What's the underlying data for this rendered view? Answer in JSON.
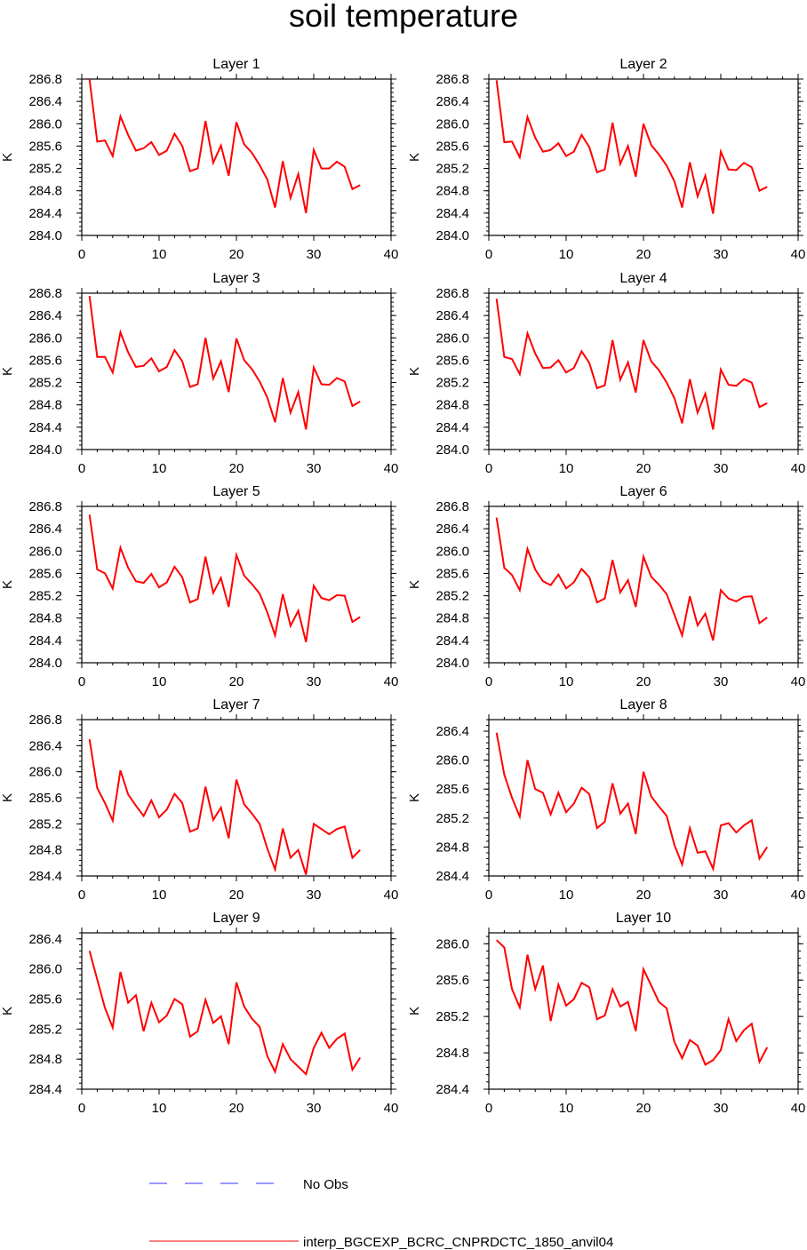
{
  "figure": {
    "title": "soil temperature",
    "legend": [
      {
        "label": "No Obs",
        "color": "#3333ff",
        "style": "dashed"
      },
      {
        "label": "interp_BGCEXP_BCRC_CNPRDCTC_1850_anvil04",
        "color": "#ff0000",
        "style": "solid"
      }
    ]
  },
  "chart_data": [
    {
      "type": "line",
      "title": "Layer 1",
      "ylabel": "K",
      "xlim": [
        0,
        40
      ],
      "xticks": [
        0,
        10,
        20,
        30,
        40
      ],
      "ylim": [
        284.0,
        286.8
      ],
      "yticks": [
        "284.0",
        "284.4",
        "284.8",
        "285.2",
        "285.6",
        "286.0",
        "286.4",
        "286.8"
      ],
      "series": [
        {
          "name": "interp_BGCEXP_BCRC_CNPRDCTC_1850_anvil04",
          "color": "#ff0000",
          "x": [
            1,
            2,
            3,
            4,
            5,
            6,
            7,
            8,
            9,
            10,
            11,
            12,
            13,
            14,
            15,
            16,
            17,
            18,
            19,
            20,
            21,
            22,
            23,
            24,
            25,
            26,
            27,
            28,
            29,
            30,
            31,
            32,
            33,
            34,
            35,
            36
          ],
          "y": [
            286.8,
            285.68,
            285.7,
            285.42,
            286.13,
            285.8,
            285.52,
            285.56,
            285.67,
            285.44,
            285.52,
            285.82,
            285.6,
            285.15,
            285.2,
            286.05,
            285.3,
            285.61,
            285.07,
            286.03,
            285.63,
            285.48,
            285.26,
            285.0,
            284.5,
            285.33,
            284.67,
            285.1,
            284.4,
            285.53,
            285.2,
            285.2,
            285.32,
            285.23,
            284.83,
            284.9
          ]
        }
      ]
    },
    {
      "type": "line",
      "title": "Layer 2",
      "ylabel": "K",
      "xlim": [
        0,
        40
      ],
      "xticks": [
        0,
        10,
        20,
        30,
        40
      ],
      "ylim": [
        284.0,
        286.8
      ],
      "yticks": [
        "284.0",
        "284.4",
        "284.8",
        "285.2",
        "285.6",
        "286.0",
        "286.4",
        "286.8"
      ],
      "series": [
        {
          "name": "interp_BGCEXP_BCRC_CNPRDCTC_1850_anvil04",
          "color": "#ff0000",
          "x": [
            1,
            2,
            3,
            4,
            5,
            6,
            7,
            8,
            9,
            10,
            11,
            12,
            13,
            14,
            15,
            16,
            17,
            18,
            19,
            20,
            21,
            22,
            23,
            24,
            25,
            26,
            27,
            28,
            29,
            30,
            31,
            32,
            33,
            34,
            35,
            36
          ],
          "y": [
            286.78,
            285.67,
            285.68,
            285.4,
            286.12,
            285.75,
            285.5,
            285.53,
            285.65,
            285.42,
            285.5,
            285.8,
            285.58,
            285.13,
            285.18,
            286.02,
            285.28,
            285.6,
            285.05,
            286.0,
            285.62,
            285.45,
            285.25,
            284.97,
            284.5,
            285.31,
            284.7,
            285.07,
            284.39,
            285.5,
            285.18,
            285.17,
            285.3,
            285.22,
            284.8,
            284.87
          ]
        }
      ]
    },
    {
      "type": "line",
      "title": "Layer 3",
      "ylabel": "K",
      "xlim": [
        0,
        40
      ],
      "xticks": [
        0,
        10,
        20,
        30,
        40
      ],
      "ylim": [
        284.0,
        286.8
      ],
      "yticks": [
        "284.0",
        "284.4",
        "284.8",
        "285.2",
        "285.6",
        "286.0",
        "286.4",
        "286.8"
      ],
      "series": [
        {
          "name": "interp_BGCEXP_BCRC_CNPRDCTC_1850_anvil04",
          "color": "#ff0000",
          "x": [
            1,
            2,
            3,
            4,
            5,
            6,
            7,
            8,
            9,
            10,
            11,
            12,
            13,
            14,
            15,
            16,
            17,
            18,
            19,
            20,
            21,
            22,
            23,
            24,
            25,
            26,
            27,
            28,
            29,
            30,
            31,
            32,
            33,
            34,
            35,
            36
          ],
          "y": [
            286.75,
            285.66,
            285.66,
            285.38,
            286.1,
            285.74,
            285.48,
            285.5,
            285.63,
            285.4,
            285.48,
            285.78,
            285.58,
            285.12,
            285.17,
            286.0,
            285.27,
            285.58,
            285.03,
            285.99,
            285.6,
            285.44,
            285.22,
            284.93,
            284.49,
            285.28,
            284.66,
            285.03,
            284.36,
            285.47,
            285.17,
            285.16,
            285.28,
            285.22,
            284.78,
            284.86
          ]
        }
      ]
    },
    {
      "type": "line",
      "title": "Layer 4",
      "ylabel": "K",
      "xlim": [
        0,
        40
      ],
      "xticks": [
        0,
        10,
        20,
        30,
        40
      ],
      "ylim": [
        284.0,
        286.8
      ],
      "yticks": [
        "284.0",
        "284.4",
        "284.8",
        "285.2",
        "285.6",
        "286.0",
        "286.4",
        "286.8"
      ],
      "series": [
        {
          "name": "interp_BGCEXP_BCRC_CNPRDCTC_1850_anvil04",
          "color": "#ff0000",
          "x": [
            1,
            2,
            3,
            4,
            5,
            6,
            7,
            8,
            9,
            10,
            11,
            12,
            13,
            14,
            15,
            16,
            17,
            18,
            19,
            20,
            21,
            22,
            23,
            24,
            25,
            26,
            27,
            28,
            29,
            30,
            31,
            32,
            33,
            34,
            35,
            36
          ],
          "y": [
            286.7,
            285.66,
            285.62,
            285.35,
            286.08,
            285.72,
            285.46,
            285.47,
            285.6,
            285.38,
            285.46,
            285.76,
            285.55,
            285.1,
            285.15,
            285.96,
            285.25,
            285.56,
            285.02,
            285.96,
            285.58,
            285.42,
            285.2,
            284.92,
            284.47,
            285.26,
            284.66,
            285.0,
            284.36,
            285.43,
            285.16,
            285.14,
            285.26,
            285.2,
            284.76,
            284.83
          ]
        }
      ]
    },
    {
      "type": "line",
      "title": "Layer 5",
      "ylabel": "K",
      "xlim": [
        0,
        40
      ],
      "xticks": [
        0,
        10,
        20,
        30,
        40
      ],
      "ylim": [
        284.0,
        286.8
      ],
      "yticks": [
        "284.0",
        "284.4",
        "284.8",
        "285.2",
        "285.6",
        "286.0",
        "286.4",
        "286.8"
      ],
      "series": [
        {
          "name": "interp_BGCEXP_BCRC_CNPRDCTC_1850_anvil04",
          "color": "#ff0000",
          "x": [
            1,
            2,
            3,
            4,
            5,
            6,
            7,
            8,
            9,
            10,
            11,
            12,
            13,
            14,
            15,
            16,
            17,
            18,
            19,
            20,
            21,
            22,
            23,
            24,
            25,
            26,
            27,
            28,
            29,
            30,
            31,
            32,
            33,
            34,
            35,
            36
          ],
          "y": [
            286.65,
            285.67,
            285.6,
            285.33,
            286.06,
            285.7,
            285.46,
            285.43,
            285.59,
            285.35,
            285.44,
            285.72,
            285.53,
            285.08,
            285.14,
            285.9,
            285.25,
            285.52,
            285.0,
            285.93,
            285.56,
            285.41,
            285.24,
            284.9,
            284.49,
            285.23,
            284.66,
            284.93,
            284.37,
            285.38,
            285.16,
            285.12,
            285.21,
            285.2,
            284.73,
            284.82
          ]
        }
      ]
    },
    {
      "type": "line",
      "title": "Layer 6",
      "ylabel": "K",
      "xlim": [
        0,
        40
      ],
      "xticks": [
        0,
        10,
        20,
        30,
        40
      ],
      "ylim": [
        284.0,
        286.8
      ],
      "yticks": [
        "284.0",
        "284.4",
        "284.8",
        "285.2",
        "285.6",
        "286.0",
        "286.4",
        "286.8"
      ],
      "series": [
        {
          "name": "interp_BGCEXP_BCRC_CNPRDCTC_1850_anvil04",
          "color": "#ff0000",
          "x": [
            1,
            2,
            3,
            4,
            5,
            6,
            7,
            8,
            9,
            10,
            11,
            12,
            13,
            14,
            15,
            16,
            17,
            18,
            19,
            20,
            21,
            22,
            23,
            24,
            25,
            26,
            27,
            28,
            29,
            30,
            31,
            32,
            33,
            34,
            35,
            36
          ],
          "y": [
            286.6,
            285.7,
            285.57,
            285.3,
            286.04,
            285.67,
            285.46,
            285.39,
            285.58,
            285.33,
            285.44,
            285.68,
            285.53,
            285.08,
            285.15,
            285.84,
            285.26,
            285.48,
            285.0,
            285.9,
            285.54,
            285.4,
            285.23,
            284.86,
            284.49,
            285.19,
            284.67,
            284.88,
            284.4,
            285.3,
            285.15,
            285.1,
            285.18,
            285.19,
            284.71,
            284.81
          ]
        }
      ]
    },
    {
      "type": "line",
      "title": "Layer 7",
      "ylabel": "K",
      "xlim": [
        0,
        40
      ],
      "xticks": [
        0,
        10,
        20,
        30,
        40
      ],
      "ylim": [
        284.4,
        286.8
      ],
      "yticks": [
        "284.4",
        "284.8",
        "285.2",
        "285.6",
        "286.0",
        "286.4",
        "286.8"
      ],
      "series": [
        {
          "name": "interp_BGCEXP_BCRC_CNPRDCTC_1850_anvil04",
          "color": "#ff0000",
          "x": [
            1,
            2,
            3,
            4,
            5,
            6,
            7,
            8,
            9,
            10,
            11,
            12,
            13,
            14,
            15,
            16,
            17,
            18,
            19,
            20,
            21,
            22,
            23,
            24,
            25,
            26,
            27,
            28,
            29,
            30,
            31,
            32,
            33,
            34,
            35,
            36
          ],
          "y": [
            286.5,
            285.75,
            285.52,
            285.25,
            286.02,
            285.65,
            285.48,
            285.32,
            285.56,
            285.3,
            285.42,
            285.66,
            285.52,
            285.08,
            285.13,
            285.77,
            285.26,
            285.45,
            284.98,
            285.88,
            285.5,
            285.36,
            285.2,
            284.82,
            284.5,
            285.13,
            284.68,
            284.8,
            284.42,
            285.2,
            285.12,
            285.04,
            285.12,
            285.16,
            284.68,
            284.8
          ]
        }
      ]
    },
    {
      "type": "line",
      "title": "Layer 8",
      "ylabel": "K",
      "xlim": [
        0,
        40
      ],
      "xticks": [
        0,
        10,
        20,
        30,
        40
      ],
      "ylim": [
        284.4,
        286.56
      ],
      "yticks": [
        "284.4",
        "284.8",
        "285.2",
        "285.6",
        "286.0",
        "286.4"
      ],
      "series": [
        {
          "name": "interp_BGCEXP_BCRC_CNPRDCTC_1850_anvil04",
          "color": "#ff0000",
          "x": [
            1,
            2,
            3,
            4,
            5,
            6,
            7,
            8,
            9,
            10,
            11,
            12,
            13,
            14,
            15,
            16,
            17,
            18,
            19,
            20,
            21,
            22,
            23,
            24,
            25,
            26,
            27,
            28,
            29,
            30,
            31,
            32,
            33,
            34,
            35,
            36
          ],
          "y": [
            286.38,
            285.8,
            285.48,
            285.22,
            286.0,
            285.6,
            285.55,
            285.25,
            285.55,
            285.28,
            285.4,
            285.62,
            285.53,
            285.06,
            285.15,
            285.68,
            285.26,
            285.4,
            284.98,
            285.84,
            285.5,
            285.36,
            285.23,
            284.83,
            284.56,
            285.06,
            284.72,
            284.74,
            284.5,
            285.1,
            285.13,
            285.0,
            285.1,
            285.17,
            284.64,
            284.8
          ]
        }
      ]
    },
    {
      "type": "line",
      "title": "Layer 9",
      "ylabel": "K",
      "xlim": [
        0,
        40
      ],
      "xticks": [
        0,
        10,
        20,
        30,
        40
      ],
      "ylim": [
        284.4,
        286.48
      ],
      "yticks": [
        "284.4",
        "284.8",
        "285.2",
        "285.6",
        "286.0",
        "286.4"
      ],
      "series": [
        {
          "name": "interp_BGCEXP_BCRC_CNPRDCTC_1850_anvil04",
          "color": "#ff0000",
          "x": [
            1,
            2,
            3,
            4,
            5,
            6,
            7,
            8,
            9,
            10,
            11,
            12,
            13,
            14,
            15,
            16,
            17,
            18,
            19,
            20,
            21,
            22,
            23,
            24,
            25,
            26,
            27,
            28,
            29,
            30,
            31,
            32,
            33,
            34,
            35,
            36
          ],
          "y": [
            286.24,
            285.86,
            285.48,
            285.22,
            285.96,
            285.55,
            285.65,
            285.17,
            285.55,
            285.29,
            285.38,
            285.6,
            285.53,
            285.1,
            285.17,
            285.59,
            285.28,
            285.37,
            285.0,
            285.82,
            285.5,
            285.34,
            285.23,
            284.84,
            284.63,
            285.0,
            284.8,
            284.7,
            284.6,
            284.95,
            285.15,
            284.95,
            285.07,
            285.14,
            284.66,
            284.82
          ]
        }
      ]
    },
    {
      "type": "line",
      "title": "Layer 10",
      "ylabel": "K",
      "xlim": [
        0,
        40
      ],
      "xticks": [
        0,
        10,
        20,
        30,
        40
      ],
      "ylim": [
        284.4,
        286.12
      ],
      "yticks": [
        "284.4",
        "284.8",
        "285.2",
        "285.6",
        "286.0"
      ],
      "series": [
        {
          "name": "interp_BGCEXP_BCRC_CNPRDCTC_1850_anvil04",
          "color": "#ff0000",
          "x": [
            1,
            2,
            3,
            4,
            5,
            6,
            7,
            8,
            9,
            10,
            11,
            12,
            13,
            14,
            15,
            16,
            17,
            18,
            19,
            20,
            21,
            22,
            23,
            24,
            25,
            26,
            27,
            28,
            29,
            30,
            31,
            32,
            33,
            34,
            35,
            36
          ],
          "y": [
            286.04,
            285.96,
            285.5,
            285.3,
            285.88,
            285.5,
            285.76,
            285.15,
            285.55,
            285.32,
            285.39,
            285.57,
            285.52,
            285.17,
            285.21,
            285.5,
            285.31,
            285.36,
            285.04,
            285.72,
            285.54,
            285.36,
            285.29,
            284.92,
            284.74,
            284.94,
            284.88,
            284.67,
            284.72,
            284.83,
            285.17,
            284.93,
            285.05,
            285.12,
            284.7,
            284.86
          ]
        }
      ]
    }
  ]
}
